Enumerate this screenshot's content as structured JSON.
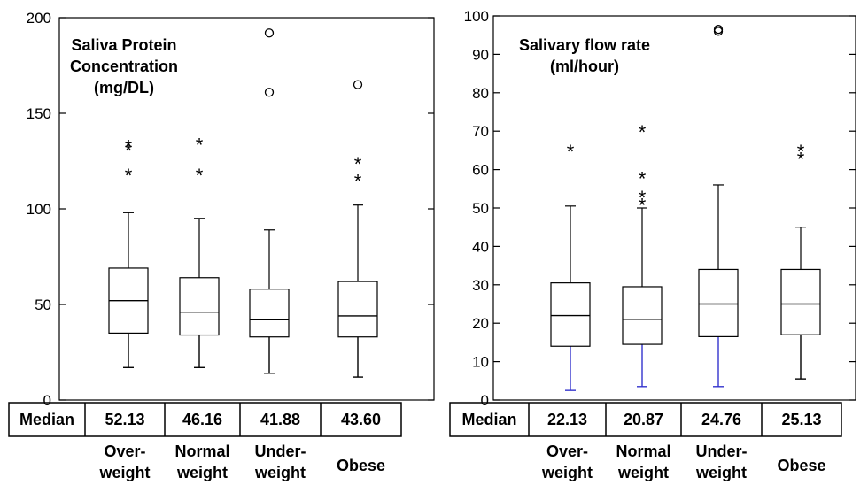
{
  "chart_data": [
    {
      "type": "box",
      "title_lines": [
        "Saliva Protein",
        "Concentration",
        "(mg/DL)"
      ],
      "ylim": [
        0,
        200
      ],
      "y_ticks": [
        0,
        50,
        100,
        150,
        200
      ],
      "median_row_label": "Median",
      "categories": [
        {
          "label_lines": [
            "Over-",
            "weight"
          ],
          "median_label": "52.13",
          "min": 17,
          "q1": 35,
          "median": 52,
          "q3": 69,
          "max": 98,
          "whisker_color": "#000000",
          "outliers_circle": [],
          "outliers_star": [
            118,
            131,
            133
          ]
        },
        {
          "label_lines": [
            "Normal",
            "weight"
          ],
          "median_label": "46.16",
          "min": 17,
          "q1": 34,
          "median": 46,
          "q3": 64,
          "max": 95,
          "whisker_color": "#000000",
          "outliers_circle": [],
          "outliers_star": [
            118,
            134
          ]
        },
        {
          "label_lines": [
            "Under-",
            "weight"
          ],
          "median_label": "41.88",
          "min": 14,
          "q1": 33,
          "median": 42,
          "q3": 58,
          "max": 89,
          "whisker_color": "#000000",
          "outliers_circle": [
            161,
            192
          ],
          "outliers_star": []
        },
        {
          "label_lines": [
            "",
            "Obese"
          ],
          "median_label": "43.60",
          "min": 12,
          "q1": 33,
          "median": 44,
          "q3": 62,
          "max": 102,
          "whisker_color": "#000000",
          "outliers_circle": [
            165
          ],
          "outliers_star": [
            115,
            124
          ]
        }
      ]
    },
    {
      "type": "box",
      "title_lines": [
        "Salivary flow rate",
        "(ml/hour)"
      ],
      "ylim": [
        0,
        100
      ],
      "y_ticks": [
        0,
        10,
        20,
        30,
        40,
        50,
        60,
        70,
        80,
        90,
        100
      ],
      "median_row_label": "Median",
      "categories": [
        {
          "label_lines": [
            "Over-",
            "weight"
          ],
          "median_label": "22.13",
          "min": 2.5,
          "q1": 14,
          "median": 22,
          "q3": 30.5,
          "max": 50.5,
          "whisker_color": "#3333cc",
          "outliers_circle": [],
          "outliers_star": [
            65
          ]
        },
        {
          "label_lines": [
            "Normal",
            "weight"
          ],
          "median_label": "20.87",
          "min": 3.5,
          "q1": 14.5,
          "median": 21,
          "q3": 29.5,
          "max": 50,
          "whisker_color": "#3333cc",
          "outliers_circle": [],
          "outliers_star": [
            51,
            53,
            58,
            70
          ]
        },
        {
          "label_lines": [
            "Under-",
            "weight"
          ],
          "median_label": "24.76",
          "min": 3.5,
          "q1": 16.5,
          "median": 25,
          "q3": 34,
          "max": 56,
          "whisker_color": "#3333cc",
          "outliers_circle": [
            96,
            96.5
          ],
          "outliers_star": []
        },
        {
          "label_lines": [
            "",
            "Obese"
          ],
          "median_label": "25.13",
          "min": 5.5,
          "q1": 17,
          "median": 25,
          "q3": 34,
          "max": 45,
          "whisker_color": "#000000",
          "outliers_circle": [],
          "outliers_star": [
            63,
            65
          ]
        }
      ]
    }
  ]
}
